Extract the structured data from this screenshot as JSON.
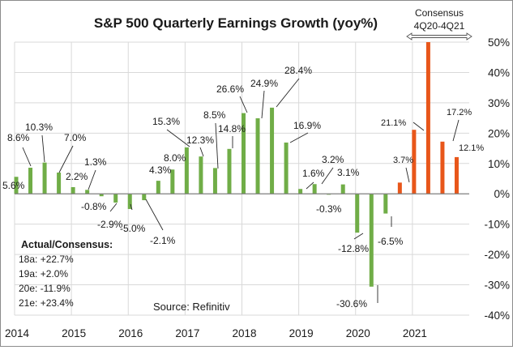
{
  "chart_data": {
    "type": "bar",
    "title": "S&P 500 Quarterly Earnings Growth (yoy%)",
    "xlabel": "",
    "ylabel": "",
    "ylim": [
      -40,
      50
    ],
    "yticks": [
      50,
      40,
      30,
      20,
      10,
      0,
      -10,
      -20,
      -30,
      -40
    ],
    "ytick_labels": [
      "50%",
      "40%",
      "30%",
      "20%",
      "10%",
      "0%",
      "-10%",
      "-20%",
      "-30%",
      "-40%"
    ],
    "y_axis_position": "right",
    "xtick_labels": [
      "2014",
      "2015",
      "2016",
      "2017",
      "2018",
      "2019",
      "2020",
      "2021"
    ],
    "grid": true,
    "categories": [
      "1Q14",
      "2Q14",
      "3Q14",
      "4Q14",
      "1Q15",
      "2Q15",
      "3Q15",
      "4Q15",
      "1Q16",
      "2Q16",
      "3Q16",
      "4Q16",
      "1Q17",
      "2Q17",
      "3Q17",
      "4Q17",
      "1Q18",
      "2Q18",
      "3Q18",
      "4Q18",
      "1Q19",
      "2Q19",
      "3Q19",
      "4Q19",
      "1Q20",
      "2Q20",
      "3Q20",
      "4Q20",
      "1Q21",
      "2Q21",
      "3Q21",
      "4Q21"
    ],
    "series": [
      {
        "name": "Actual",
        "color": "#70AD47",
        "values": [
          5.6,
          8.6,
          10.3,
          7.0,
          2.2,
          1.3,
          -0.8,
          -2.9,
          -5.0,
          -2.1,
          4.3,
          8.0,
          15.3,
          12.3,
          8.5,
          14.8,
          26.6,
          24.9,
          28.4,
          16.9,
          1.6,
          3.2,
          -0.3,
          3.1,
          -12.8,
          -30.6,
          -6.5,
          null,
          null,
          null,
          null,
          null
        ]
      },
      {
        "name": "Consensus",
        "color": "#E8561A",
        "values": [
          null,
          null,
          null,
          null,
          null,
          null,
          null,
          null,
          null,
          null,
          null,
          null,
          null,
          null,
          null,
          null,
          null,
          null,
          null,
          null,
          null,
          null,
          null,
          null,
          null,
          null,
          null,
          3.7,
          21.1,
          50.0,
          17.2,
          12.1
        ],
        "note": "2Q21 bar exceeds the 50% axis maximum and is clipped; no data label shown"
      }
    ],
    "data_labels": [
      "5.6%",
      "8.6%",
      "10.3%",
      "7.0%",
      "2.2%",
      "1.3%",
      "-0.8%",
      "-2.9%",
      "-5.0%",
      "-2.1%",
      "4.3%",
      "8.0%",
      "15.3%",
      "12.3%",
      "8.5%",
      "14.8%",
      "26.6%",
      "24.9%",
      "28.4%",
      "16.9%",
      "1.6%",
      "3.2%",
      "-0.3%",
      "3.1%",
      "-12.8%",
      "-30.6%",
      "-6.5%",
      "3.7%",
      "21.1%",
      "",
      "17.2%",
      "12.1%"
    ],
    "annotations": {
      "consensus_title": "Consensus",
      "consensus_range": "4Q20-4Q21",
      "summary_title": "Actual/Consensus:",
      "summary_lines": [
        "18a:  +22.7%",
        "19a:  +2.0%",
        "20e:  -11.9%",
        "21e:  +23.4%"
      ],
      "source": "Source:   Refinitiv"
    }
  }
}
